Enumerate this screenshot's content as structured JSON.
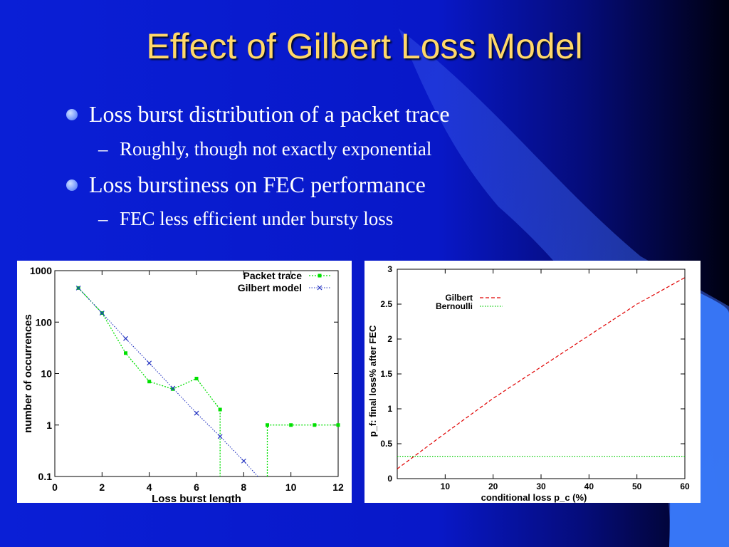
{
  "slide": {
    "title": "Effect of Gilbert Loss Model",
    "bullets": [
      {
        "text": "Loss burst distribution of a packet trace",
        "sub": "Roughly, though not exactly exponential"
      },
      {
        "text": "Loss burstiness on FEC performance",
        "sub": "FEC less efficient under bursty loss"
      }
    ]
  },
  "colors": {
    "background": "#0a1fd6",
    "title": "#ffd86a",
    "text": "#ffffff",
    "trace_green": "#00e000",
    "model_blue": "#2030c0",
    "gilbert_red": "#e00000",
    "bernoulli_green": "#00cc00"
  },
  "chart_data": [
    {
      "type": "line",
      "xlabel": "Loss burst length",
      "ylabel": "number of occurrences",
      "xlim": [
        0,
        12
      ],
      "ylim": [
        0.1,
        1000
      ],
      "yscale": "log",
      "xticks": [
        "0",
        "2",
        "4",
        "6",
        "8",
        "10",
        "12"
      ],
      "yticks": [
        "0.1",
        "1",
        "10",
        "100",
        "1000"
      ],
      "legend_position": "top-right",
      "series": [
        {
          "name": "Packet trace",
          "style": "green dotted, square markers",
          "x": [
            1,
            2,
            3,
            4,
            5,
            6,
            7,
            9,
            10,
            11,
            12
          ],
          "y": [
            460,
            150,
            25,
            7,
            5,
            8,
            2,
            1,
            1,
            1,
            1
          ]
        },
        {
          "name": "Gilbert model",
          "style": "blue dotted, x markers",
          "x": [
            1,
            2,
            3,
            4,
            5,
            6,
            7,
            8,
            8.6
          ],
          "y": [
            460,
            150,
            48,
            16,
            5.2,
            1.7,
            0.6,
            0.2,
            0.1
          ]
        }
      ]
    },
    {
      "type": "line",
      "xlabel": "conditional loss p_c (%)",
      "ylabel": "p_f: final loss% after FEC",
      "xlim": [
        0,
        60
      ],
      "ylim": [
        0,
        3
      ],
      "xticks": [
        "10",
        "20",
        "30",
        "40",
        "50",
        "60"
      ],
      "yticks": [
        "0",
        "0.5",
        "1",
        "1.5",
        "2",
        "2.5",
        "3"
      ],
      "legend_position": "top-left",
      "series": [
        {
          "name": "Gilbert",
          "style": "red dashed",
          "x": [
            0,
            10,
            20,
            30,
            40,
            50,
            60
          ],
          "y": [
            0.14,
            0.65,
            1.15,
            1.6,
            2.05,
            2.5,
            2.88
          ]
        },
        {
          "name": "Bernoulli",
          "style": "green dotted",
          "x": [
            0,
            60
          ],
          "y": [
            0.32,
            0.32
          ]
        }
      ]
    }
  ]
}
